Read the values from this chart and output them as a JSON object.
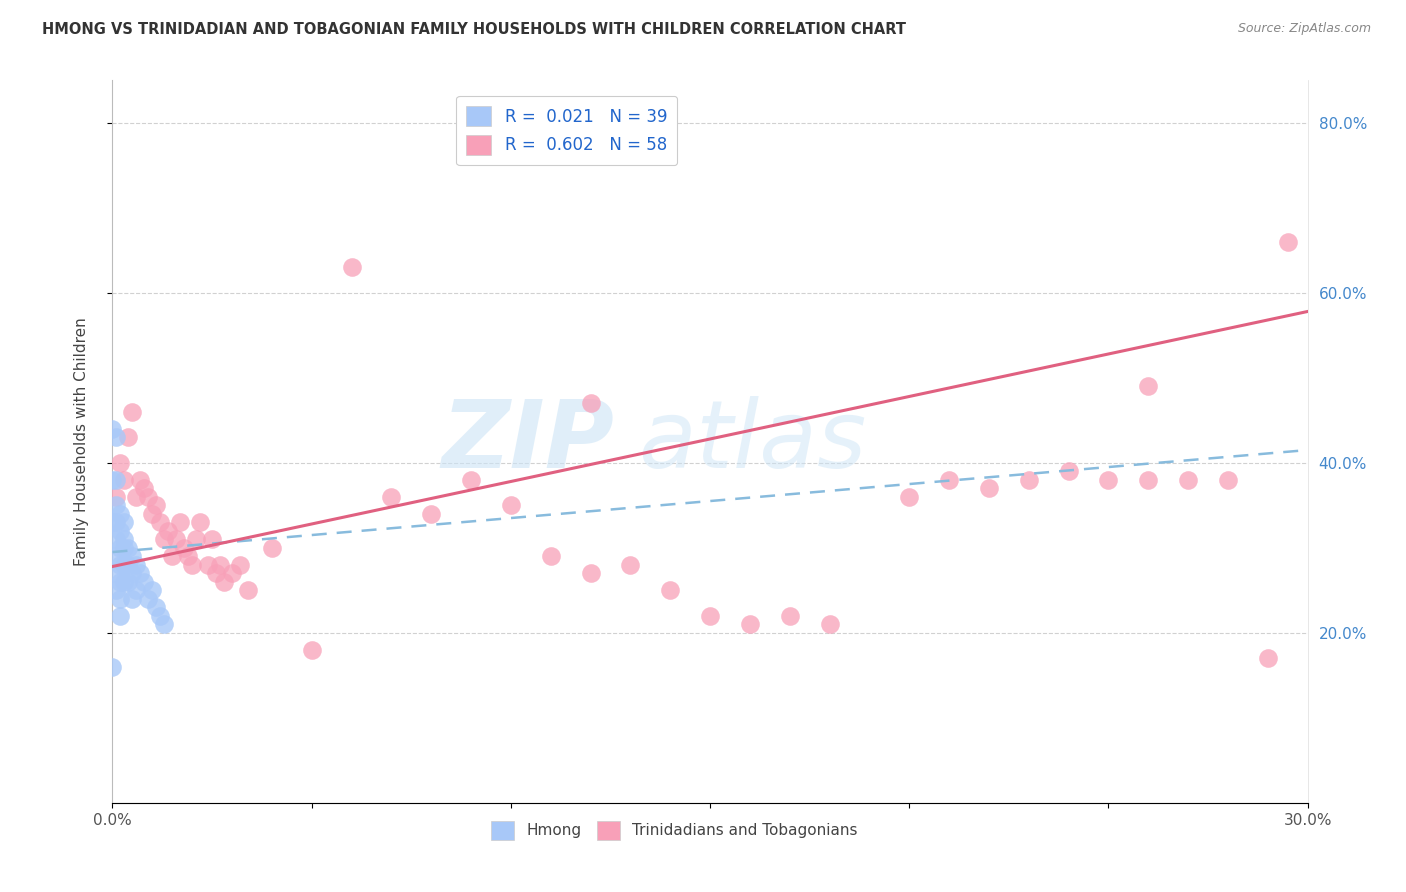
{
  "title": "HMONG VS TRINIDADIAN AND TOBAGONIAN FAMILY HOUSEHOLDS WITH CHILDREN CORRELATION CHART",
  "source": "Source: ZipAtlas.com",
  "ylabel": "Family Households with Children",
  "xlim": [
    0.0,
    0.3
  ],
  "ylim": [
    0.0,
    0.85
  ],
  "x_ticks": [
    0.0,
    0.05,
    0.1,
    0.15,
    0.2,
    0.25,
    0.3
  ],
  "x_tick_labels": [
    "0.0%",
    "",
    "",
    "",
    "",
    "",
    "30.0%"
  ],
  "y_ticks_right": [
    0.2,
    0.4,
    0.6,
    0.8
  ],
  "y_tick_labels_right": [
    "20.0%",
    "40.0%",
    "60.0%",
    "80.0%"
  ],
  "legend_color1": "#a8c8f8",
  "legend_color2": "#f8a8c0",
  "trendline_color1": "#88bbdd",
  "trendline_color2": "#e06080",
  "bottom_legend1": "Hmong",
  "bottom_legend2": "Trinidadians and Tobagonians",
  "hmong_x": [
    0.0,
    0.0,
    0.0,
    0.0,
    0.001,
    0.001,
    0.001,
    0.001,
    0.001,
    0.001,
    0.001,
    0.001,
    0.002,
    0.002,
    0.002,
    0.002,
    0.002,
    0.002,
    0.002,
    0.003,
    0.003,
    0.003,
    0.003,
    0.003,
    0.004,
    0.004,
    0.004,
    0.005,
    0.005,
    0.005,
    0.006,
    0.006,
    0.007,
    0.008,
    0.009,
    0.01,
    0.011,
    0.012,
    0.013
  ],
  "hmong_y": [
    0.44,
    0.38,
    0.33,
    0.16,
    0.43,
    0.38,
    0.35,
    0.33,
    0.31,
    0.29,
    0.27,
    0.25,
    0.34,
    0.32,
    0.3,
    0.28,
    0.26,
    0.24,
    0.22,
    0.33,
    0.31,
    0.3,
    0.28,
    0.26,
    0.3,
    0.28,
    0.26,
    0.29,
    0.27,
    0.24,
    0.28,
    0.25,
    0.27,
    0.26,
    0.24,
    0.25,
    0.23,
    0.22,
    0.21
  ],
  "tnt_x": [
    0.001,
    0.002,
    0.003,
    0.004,
    0.005,
    0.006,
    0.007,
    0.008,
    0.009,
    0.01,
    0.011,
    0.012,
    0.013,
    0.014,
    0.015,
    0.016,
    0.017,
    0.018,
    0.019,
    0.02,
    0.021,
    0.022,
    0.024,
    0.025,
    0.026,
    0.027,
    0.028,
    0.03,
    0.032,
    0.034,
    0.04,
    0.05,
    0.06,
    0.07,
    0.08,
    0.09,
    0.1,
    0.11,
    0.12,
    0.13,
    0.14,
    0.15,
    0.16,
    0.17,
    0.18,
    0.2,
    0.21,
    0.22,
    0.23,
    0.24,
    0.25,
    0.26,
    0.27,
    0.28,
    0.29,
    0.295,
    0.12,
    0.26
  ],
  "tnt_y": [
    0.36,
    0.4,
    0.38,
    0.43,
    0.46,
    0.36,
    0.38,
    0.37,
    0.36,
    0.34,
    0.35,
    0.33,
    0.31,
    0.32,
    0.29,
    0.31,
    0.33,
    0.3,
    0.29,
    0.28,
    0.31,
    0.33,
    0.28,
    0.31,
    0.27,
    0.28,
    0.26,
    0.27,
    0.28,
    0.25,
    0.3,
    0.18,
    0.63,
    0.36,
    0.34,
    0.38,
    0.35,
    0.29,
    0.27,
    0.28,
    0.25,
    0.22,
    0.21,
    0.22,
    0.21,
    0.36,
    0.38,
    0.37,
    0.38,
    0.39,
    0.38,
    0.38,
    0.38,
    0.38,
    0.17,
    0.66,
    0.47,
    0.49
  ],
  "background_color": "#ffffff",
  "grid_color": "#cccccc"
}
